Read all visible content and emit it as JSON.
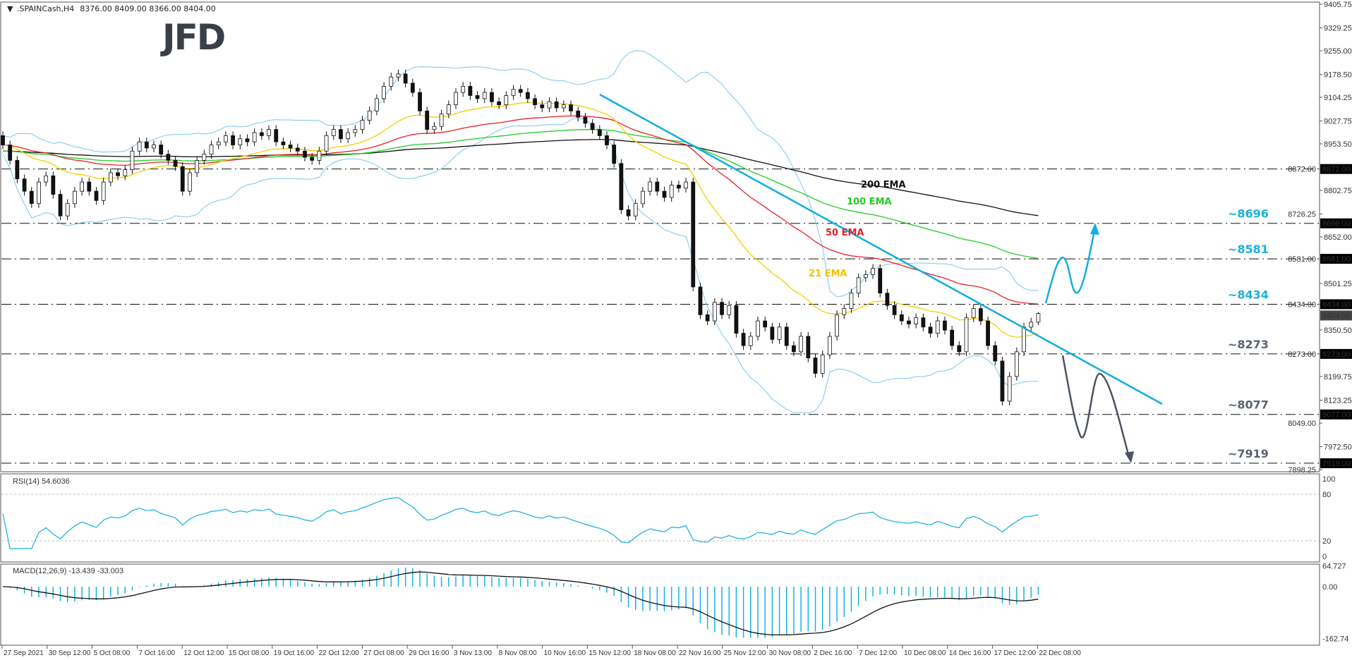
{
  "header": {
    "symbol": ".SPAINCash,H4",
    "ohlc": "8376.00 8409.00 8366.00 8404.00"
  },
  "logo": "JFD",
  "chart_data": {
    "type": "candlestick",
    "symbol": ".SPAINCash",
    "timeframe": "H4",
    "last_bar": {
      "open": 8376.0,
      "high": 8409.0,
      "low": 8366.0,
      "close": 8404.0
    },
    "ylim": [
      7898.25,
      9405.75
    ],
    "y_ticks": [
      "9405.75",
      "9329.25",
      "9255.00",
      "9178.50",
      "9104.25",
      "9027.75",
      "8953.50",
      "8872.00",
      "8802.75",
      "8726.25",
      "8652.00",
      "8581.00",
      "8501.25",
      "8434.00",
      "8350.50",
      "8273.00",
      "8199.75",
      "8123.25",
      "8049.00",
      "7972.50",
      "7898.25"
    ],
    "x_ticks": [
      "27 Sep 2021",
      "30 Sep 12:00",
      "5 Oct 08:00",
      "7 Oct 16:00",
      "12 Oct 12:00",
      "15 Oct 08:00",
      "19 Oct 16:00",
      "22 Oct 12:00",
      "27 Oct 08:00",
      "29 Oct 16:00",
      "3 Nov 13:00",
      "8 Nov 08:00",
      "10 Nov 16:00",
      "15 Nov 12:00",
      "18 Nov 08:00",
      "22 Nov 16:00",
      "25 Nov 12:00",
      "30 Nov 08:00",
      "2 Dec 16:00",
      "7 Dec 12:00",
      "10 Dec 08:00",
      "14 Dec 16:00",
      "17 Dec 12:00",
      "22 Dec 08:00"
    ],
    "close": [
      8950,
      8900,
      8840,
      8800,
      8760,
      8830,
      8850,
      8790,
      8720,
      8760,
      8800,
      8830,
      8800,
      8770,
      8830,
      8860,
      8850,
      8870,
      8930,
      8960,
      8940,
      8950,
      8920,
      8900,
      8880,
      8800,
      8860,
      8900,
      8920,
      8950,
      8960,
      8980,
      8950,
      8970,
      8960,
      8990,
      8980,
      9000,
      8960,
      8950,
      8940,
      8930,
      8910,
      8900,
      8930,
      8980,
      9000,
      8970,
      8990,
      9000,
      9030,
      9060,
      9100,
      9140,
      9170,
      9180,
      9150,
      9120,
      9060,
      9000,
      9010,
      9050,
      9080,
      9120,
      9140,
      9110,
      9100,
      9120,
      9090,
      9080,
      9110,
      9130,
      9120,
      9100,
      9080,
      9070,
      9090,
      9070,
      9080,
      9060,
      9040,
      9020,
      9000,
      8980,
      8950,
      8890,
      8740,
      8720,
      8760,
      8800,
      8830,
      8800,
      8780,
      8820,
      8810,
      8830,
      8490,
      8400,
      8380,
      8440,
      8400,
      8430,
      8340,
      8300,
      8330,
      8380,
      8360,
      8320,
      8360,
      8300,
      8280,
      8330,
      8260,
      8210,
      8270,
      8330,
      8400,
      8420,
      8470,
      8520,
      8530,
      8550,
      8470,
      8430,
      8400,
      8380,
      8370,
      8390,
      8360,
      8340,
      8380,
      8350,
      8300,
      8280,
      8390,
      8420,
      8380,
      8300,
      8250,
      8120,
      8200,
      8280,
      8360,
      8376,
      8404
    ],
    "indicators": {
      "ema_labels": [
        "200 EMA",
        "100 EMA",
        "50 EMA",
        "21 EMA"
      ],
      "ema_periods": [
        200,
        100,
        50,
        21
      ],
      "ema_colors": [
        "#111111",
        "#22cc22",
        "#e8202a",
        "#f2d000"
      ],
      "bollinger_color": "#7cc6ea"
    },
    "levels": [
      {
        "value": 8872.0,
        "axis_label": "8872.00",
        "text": ""
      },
      {
        "value": 8696.0,
        "axis_label": "8696.00",
        "text": "~8696",
        "color": "#1ab0dc"
      },
      {
        "value": 8581.0,
        "axis_label": "8581.00",
        "text": "~8581",
        "color": "#1ab0dc"
      },
      {
        "value": 8434.0,
        "axis_label": "8434.00",
        "text": "~8434",
        "color": "#1ab0dc"
      },
      {
        "value": 8273.0,
        "axis_label": "8273.00",
        "text": "~8273",
        "color": "#5a6470"
      },
      {
        "value": 8077.0,
        "axis_label": "8077.00",
        "text": "~8077",
        "color": "#5a6470"
      },
      {
        "value": 7919.0,
        "axis_label": "7919.00",
        "text": "~7919",
        "color": "#5a6470"
      }
    ],
    "current_price_label": "8404.00",
    "rsi": {
      "label": "RSI(14) 54.6036",
      "ticks": [
        "100",
        "80",
        "20",
        "0"
      ]
    },
    "macd": {
      "label": "MACD(12,26,9) -13.439 -33.003",
      "ticks": [
        "64.727",
        "0.00",
        "-162.74"
      ]
    },
    "colors": {
      "trendline": "#12aee0",
      "bullish_path": "#12aee0",
      "bearish_path": "#4a5360",
      "rsi_line": "#12aee0",
      "macd_hist": "#12b6e0"
    }
  }
}
